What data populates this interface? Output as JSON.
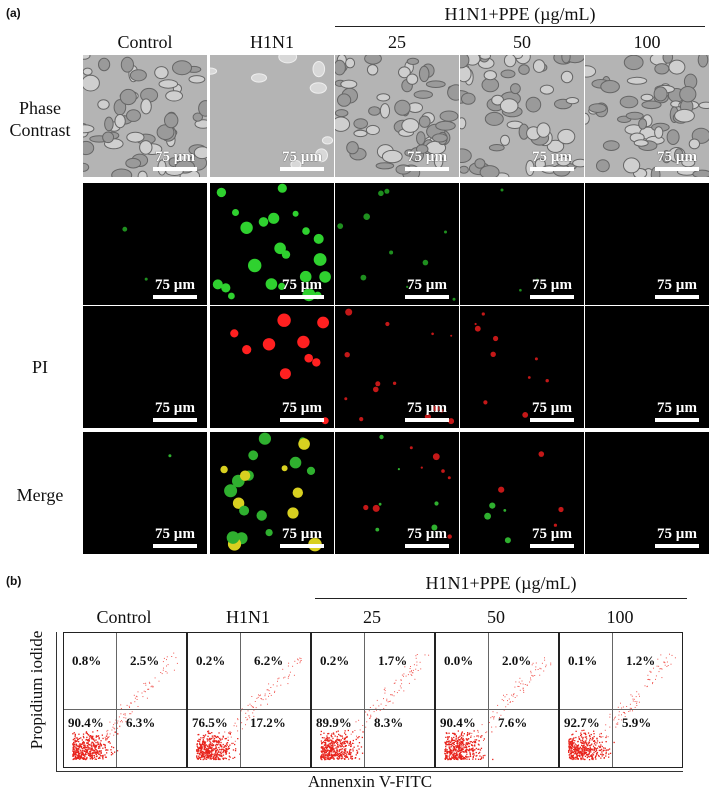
{
  "panel_a": {
    "tag": "(a)",
    "group_header": "H1N1+PPE (µg/mL)",
    "columns": [
      "Control",
      "H1N1",
      "25",
      "50",
      "100"
    ],
    "rows": [
      {
        "label_line1": "Phase",
        "label_line2": "Contrast",
        "kind": "phase"
      },
      {
        "label_line1": "",
        "label_line2": "",
        "kind": "annexin"
      },
      {
        "label_line1": "PI",
        "label_line2": "",
        "kind": "pi"
      },
      {
        "label_line1": "Merge",
        "label_line2": "",
        "kind": "merge"
      }
    ],
    "scale_bar": "75 µm"
  },
  "panel_b": {
    "tag": "(b)",
    "group_header": "H1N1+PPE (µg/mL)",
    "columns": [
      "Control",
      "H1N1",
      "25",
      "50",
      "100"
    ],
    "y_axis_label": "Propidium iodide",
    "x_axis_label": "Annenxin V-FITC",
    "plots": [
      {
        "ul": "0.8%",
        "ur": "2.5%",
        "ll": "90.4%",
        "lr": "6.3%"
      },
      {
        "ul": "0.2%",
        "ur": "6.2%",
        "ll": "76.5%",
        "lr": "17.2%"
      },
      {
        "ul": "0.2%",
        "ur": "1.7%",
        "ll": "89.9%",
        "lr": "8.3%"
      },
      {
        "ul": "0.0%",
        "ur": "2.0%",
        "ll": "90.4%",
        "lr": "7.6%"
      },
      {
        "ul": "0.1%",
        "ur": "1.2%",
        "ll": "92.7%",
        "lr": "5.9%"
      }
    ]
  }
}
